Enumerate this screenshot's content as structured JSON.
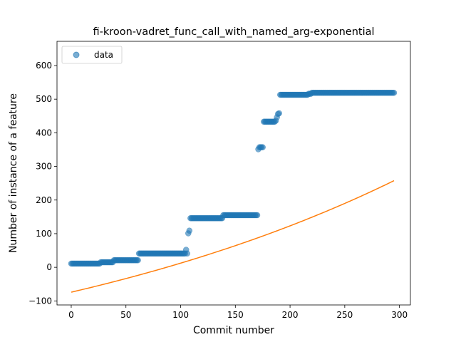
{
  "chart_data": {
    "type": "scatter",
    "title": "fi-kroon-vadret_func_call_with_named_arg-exponential",
    "xlabel": "Commit number",
    "ylabel": "Number of instance of a feature",
    "xlim": [
      -13,
      310
    ],
    "ylim": [
      -112,
      672
    ],
    "xticks": [
      0,
      50,
      100,
      150,
      200,
      250,
      300
    ],
    "yticks": [
      -100,
      0,
      100,
      200,
      300,
      400,
      500,
      600
    ],
    "xtick_labels": [
      "0",
      "50",
      "100",
      "150",
      "200",
      "250",
      "300"
    ],
    "ytick_labels": [
      "−100",
      "0",
      "100",
      "200",
      "300",
      "400",
      "500",
      "600"
    ],
    "legend": {
      "position": "top-left",
      "entries": [
        "data"
      ]
    },
    "colors": {
      "data": "#1f77b4",
      "fit": "#ff7f0e"
    },
    "series": [
      {
        "name": "data",
        "kind": "scatter",
        "segments": [
          {
            "x_start": 0,
            "x_end": 26,
            "y": 11
          },
          {
            "x_start": 27,
            "x_end": 38,
            "y": 15
          },
          {
            "x_start": 39,
            "x_end": 61,
            "y": 21
          },
          {
            "x_start": 62,
            "x_end": 104,
            "y": 41
          },
          {
            "x_start": 109,
            "x_end": 138,
            "y": 146
          },
          {
            "x_start": 139,
            "x_end": 170,
            "y": 155
          },
          {
            "x_start": 173,
            "x_end": 175,
            "y": 357
          },
          {
            "x_start": 176,
            "x_end": 186,
            "y": 433
          },
          {
            "x_start": 191,
            "x_end": 216,
            "y": 513
          },
          {
            "x_start": 217,
            "x_end": 219,
            "y": 516
          },
          {
            "x_start": 220,
            "x_end": 295,
            "y": 519
          }
        ],
        "points": [
          {
            "x": 105,
            "y": 52
          },
          {
            "x": 106,
            "y": 41
          },
          {
            "x": 107,
            "y": 101
          },
          {
            "x": 108,
            "y": 109
          },
          {
            "x": 171,
            "y": 351
          },
          {
            "x": 172,
            "y": 357
          },
          {
            "x": 187,
            "y": 436
          },
          {
            "x": 188,
            "y": 446
          },
          {
            "x": 189,
            "y": 456
          },
          {
            "x": 190,
            "y": 458
          }
        ]
      },
      {
        "name": "",
        "kind": "line",
        "fit": {
          "a": 304.0,
          "b": 0.0025,
          "c": -378.0,
          "x_min": 0,
          "x_max": 295
        }
      }
    ]
  }
}
